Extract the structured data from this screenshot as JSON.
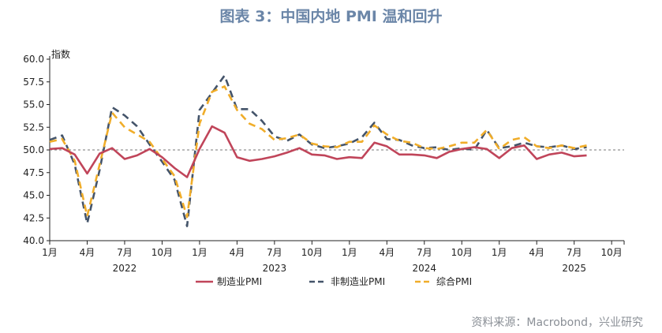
{
  "title": "图表 3：中国内地 PMI 温和回升",
  "source": "资料来源：Macrobond，兴业研究",
  "chart_data": {
    "type": "line",
    "ylabel": "指数",
    "ylim": [
      40,
      60
    ],
    "yticks": [
      "40.0",
      "42.5",
      "45.0",
      "47.5",
      "50.0",
      "52.5",
      "55.0",
      "57.5",
      "60.0"
    ],
    "xticks": [
      {
        "label": "1月",
        "index": 0
      },
      {
        "label": "4月",
        "index": 3
      },
      {
        "label": "7月",
        "index": 6
      },
      {
        "label": "10月",
        "index": 9
      },
      {
        "label": "1月",
        "index": 12
      },
      {
        "label": "4月",
        "index": 15
      },
      {
        "label": "7月",
        "index": 18
      },
      {
        "label": "10月",
        "index": 21
      },
      {
        "label": "1月",
        "index": 24
      },
      {
        "label": "4月",
        "index": 27
      },
      {
        "label": "7月",
        "index": 30
      },
      {
        "label": "10月",
        "index": 33
      },
      {
        "label": "1月",
        "index": 36
      },
      {
        "label": "4月",
        "index": 39
      },
      {
        "label": "7月",
        "index": 42
      },
      {
        "label": "10月",
        "index": 45
      }
    ],
    "years": [
      {
        "label": "2022",
        "index": 6
      },
      {
        "label": "2023",
        "index": 18
      },
      {
        "label": "2024",
        "index": 30
      },
      {
        "label": "2025",
        "index": 42
      }
    ],
    "reference_line": 50,
    "x_count": 47,
    "series": [
      {
        "name": "制造业PMI",
        "color": "#c0455a",
        "dash": "solid",
        "values": [
          50.1,
          50.2,
          49.5,
          47.4,
          49.6,
          50.2,
          49.0,
          49.4,
          50.1,
          49.2,
          48.0,
          47.0,
          50.1,
          52.6,
          51.9,
          49.2,
          48.8,
          49.0,
          49.3,
          49.7,
          50.2,
          49.5,
          49.4,
          49.0,
          49.2,
          49.1,
          50.8,
          50.4,
          49.5,
          49.5,
          49.4,
          49.1,
          49.8,
          50.1,
          50.3,
          50.1,
          49.1,
          50.2,
          50.5,
          49.0,
          49.5,
          49.7,
          49.3,
          49.4
        ]
      },
      {
        "name": "非制造业PMI",
        "color": "#44546a",
        "dash": "dashed",
        "values": [
          51.1,
          51.6,
          48.4,
          41.9,
          47.8,
          54.7,
          53.8,
          52.6,
          50.6,
          48.7,
          46.7,
          41.6,
          54.4,
          56.3,
          58.2,
          54.5,
          54.5,
          53.2,
          51.5,
          51.0,
          51.7,
          50.6,
          50.2,
          50.4,
          50.7,
          51.4,
          53.0,
          51.2,
          51.1,
          50.5,
          50.2,
          50.3,
          50.0,
          50.2,
          50.0,
          52.2,
          50.2,
          50.4,
          50.8,
          50.4,
          50.3,
          50.5,
          50.1,
          50.3
        ]
      },
      {
        "name": "综合PMI",
        "color": "#f0ad2a",
        "dash": "dashed",
        "values": [
          50.9,
          51.2,
          48.8,
          42.7,
          48.4,
          54.1,
          52.5,
          51.7,
          50.9,
          49.0,
          47.1,
          42.6,
          52.9,
          56.4,
          57.0,
          54.4,
          52.9,
          52.3,
          51.1,
          51.3,
          51.7,
          50.7,
          50.4,
          50.3,
          50.9,
          50.9,
          52.7,
          51.7,
          51.0,
          50.8,
          50.2,
          50.1,
          50.4,
          50.8,
          50.8,
          52.2,
          50.1,
          51.1,
          51.4,
          50.4,
          50.2,
          50.5,
          50.2,
          50.5
        ]
      }
    ],
    "legend_position": "bottom"
  }
}
